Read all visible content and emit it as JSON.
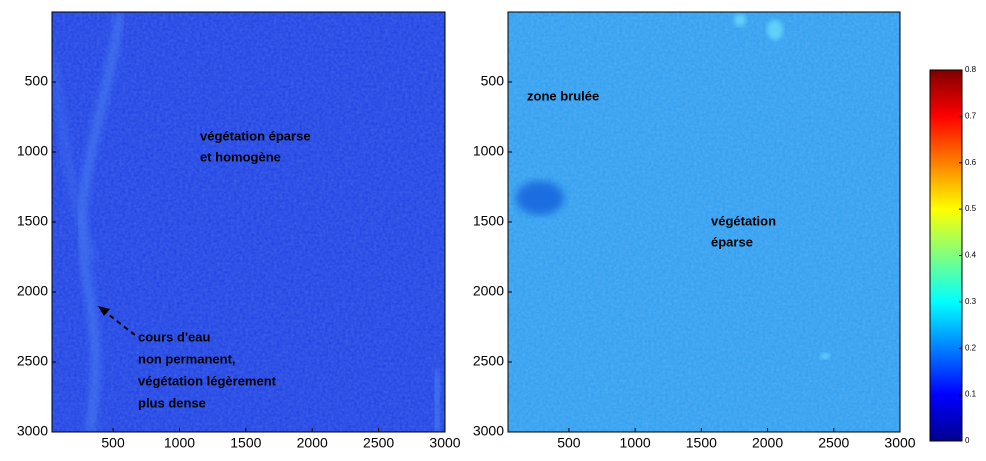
{
  "chart_data": [
    {
      "type": "image",
      "xlim": [
        40,
        3000
      ],
      "xticks": [
        500,
        1000,
        1500,
        2000,
        2500,
        3000
      ],
      "ylim": [
        3000,
        0
      ],
      "yticks": [
        500,
        1000,
        1500,
        2000,
        2500,
        3000
      ],
      "annotations": [
        [
          "végétation éparse",
          "et homogène"
        ],
        [
          "cours d'eau",
          "non permanent,",
          "végétation légèrement",
          "plus dense"
        ]
      ]
    },
    {
      "type": "image",
      "xlim": [
        40,
        3000
      ],
      "xticks": [
        500,
        1000,
        1500,
        2000,
        2500,
        3000
      ],
      "ylim": [
        3000,
        0
      ],
      "yticks": [
        500,
        1000,
        1500,
        2000,
        2500,
        3000
      ],
      "annotations": [
        [
          "zone brulée"
        ],
        [
          "végétation",
          "éparse"
        ]
      ]
    },
    {
      "type": "colorbar",
      "clim": [
        0,
        0.8
      ],
      "ticks": [
        0,
        0.1,
        0.2,
        0.3,
        0.4,
        0.5,
        0.6,
        0.7,
        0.8
      ]
    }
  ]
}
